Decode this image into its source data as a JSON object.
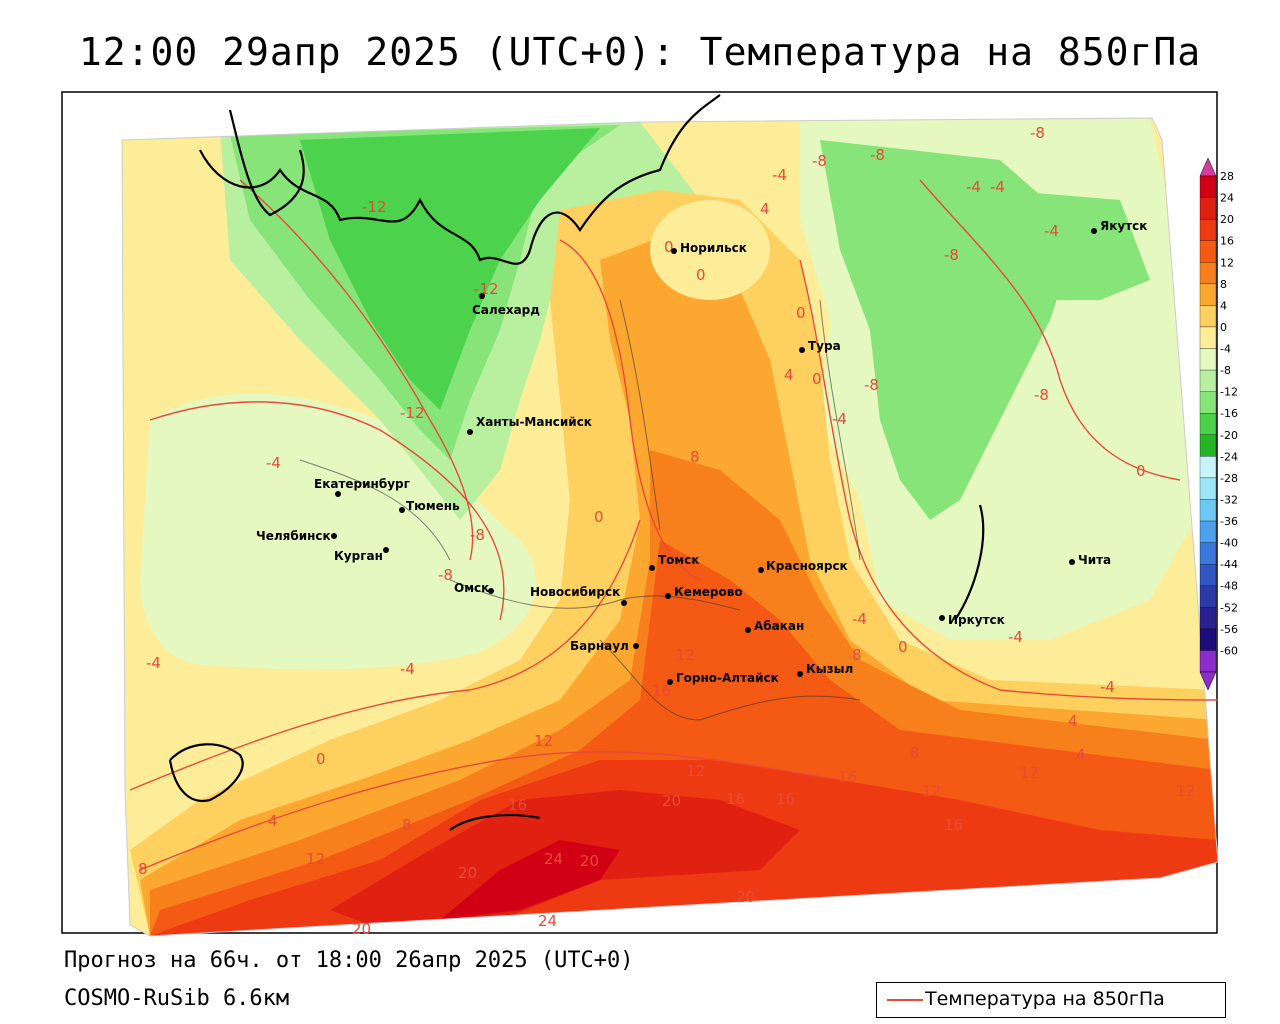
{
  "title": "12:00 29апр 2025 (UTC+0): Температура на 850гПа",
  "forecast_info": "Прогноз на 66ч. от 18:00 26апр 2025 (UTC+0)",
  "model": "COSMO-RuSib 6.6км",
  "legend": {
    "label": "Температура на 850гПа",
    "line_color": "#e84a3a"
  },
  "colorbar": {
    "levels": [
      "28",
      "24",
      "20",
      "16",
      "12",
      "8",
      "4",
      "0",
      "-4",
      "-8",
      "-12",
      "-16",
      "-20",
      "-24",
      "-28",
      "-32",
      "-36",
      "-40",
      "-44",
      "-48",
      "-52",
      "-56",
      "-60"
    ],
    "colors": [
      "#d20014",
      "#e02010",
      "#ee3a12",
      "#f45a14",
      "#f8801c",
      "#fca830",
      "#fdd060",
      "#fdec98",
      "#e4f8c0",
      "#b8f0a0",
      "#86e478",
      "#4cd24c",
      "#24b424",
      "#c6f4f8",
      "#9ce6f8",
      "#6ec8f4",
      "#4ea0ec",
      "#3a78dc",
      "#3256c4",
      "#2c3aa8",
      "#2a2090",
      "#1c0c7c",
      "#8c2ccc"
    ],
    "top_arrow_color": "#d43ca0",
    "bottom_arrow_color": "#8c2ccc"
  },
  "cities": [
    {
      "name": "Норильск"
    },
    {
      "name": "Якутск"
    },
    {
      "name": "Салехард"
    },
    {
      "name": "Тура"
    },
    {
      "name": "Ханты-Мансийск"
    },
    {
      "name": "Екатеринбург"
    },
    {
      "name": "Тюмень"
    },
    {
      "name": "Челябинск"
    },
    {
      "name": "Курган"
    },
    {
      "name": "Омск"
    },
    {
      "name": "Новосибирск"
    },
    {
      "name": "Томск"
    },
    {
      "name": "Красноярск"
    },
    {
      "name": "Кемерово"
    },
    {
      "name": "Абакан"
    },
    {
      "name": "Барнаул"
    },
    {
      "name": "Горно-Алтайск"
    },
    {
      "name": "Кызыл"
    },
    {
      "name": "Иркутск"
    },
    {
      "name": "Чита"
    }
  ],
  "isotherm_labels": [
    "-12",
    "-12",
    "-12",
    "-4",
    "-4",
    "-8",
    "-8",
    "-8",
    "-8",
    "-4",
    "-4",
    "-8",
    "0",
    "-4",
    "-4",
    "-4",
    "4",
    "0",
    "0",
    "0",
    "4",
    "0",
    "-4",
    "-8",
    "-8",
    "8",
    "-8",
    "0",
    "-4",
    "0",
    "-4",
    "4",
    "8",
    "12",
    "12",
    "16",
    "20",
    "16",
    "16",
    "12",
    "16",
    "12",
    "8",
    "12",
    "20",
    "24",
    "20",
    "24",
    "20",
    "20",
    "16",
    "8",
    "4",
    "0",
    "-4",
    "12",
    "16",
    "16",
    "12",
    "8",
    "4"
  ]
}
